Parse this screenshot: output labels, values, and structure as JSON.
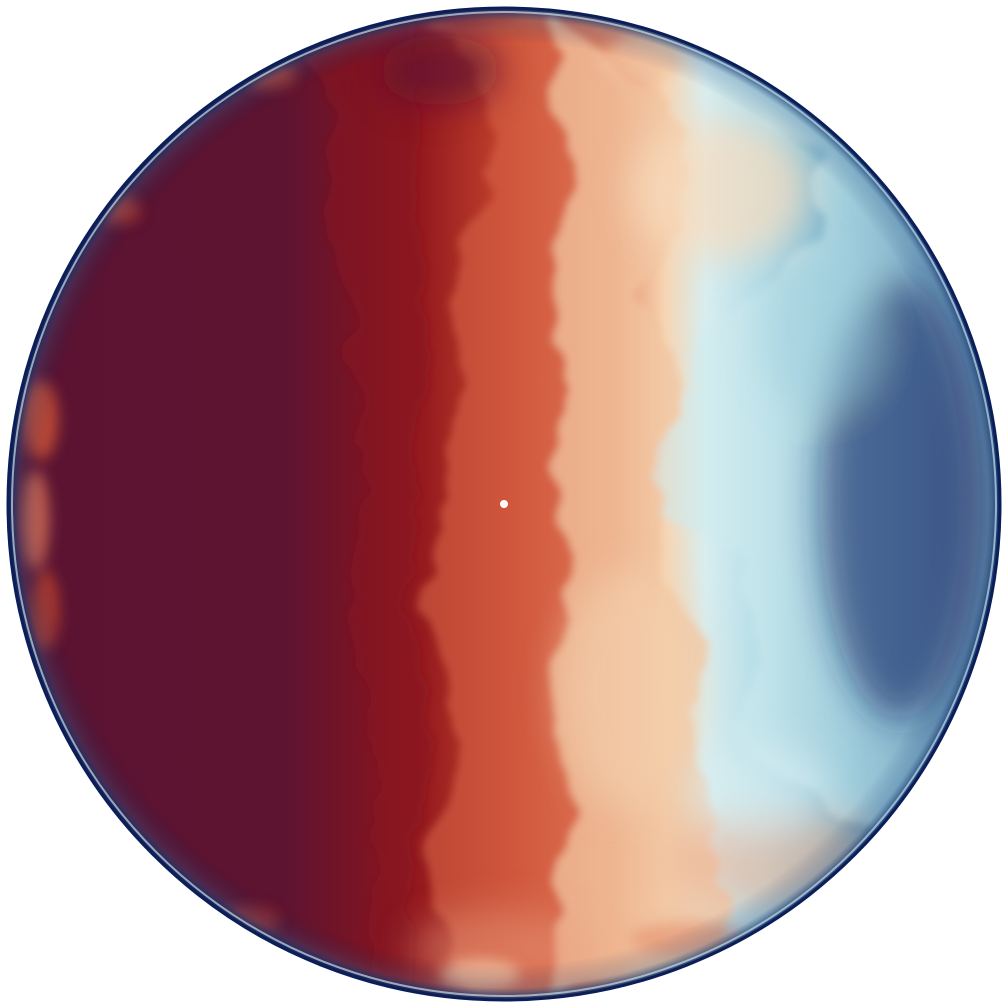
{
  "image": {
    "subject": "circular-flow-field",
    "background_color": "#ffffff",
    "colormap": {
      "name": "diverging-red-blue",
      "stops": [
        "#5a1232",
        "#8f1420",
        "#c9452e",
        "#e07555",
        "#f5cfae",
        "#fbead8",
        "#cfe9ee",
        "#8cc2d3",
        "#3d88ad",
        "#0a2463",
        "#06174d"
      ]
    },
    "regions": {
      "warm_dark": "#5b1332",
      "warm_mid": "#941a1f",
      "warm_light": "#dc6a4d",
      "cream": "#f8dcbd",
      "cool_light": "#cdebef",
      "cool_mid": "#5fa6c3",
      "cool_dark": "#0b2665",
      "rim": "#0a1f5a"
    },
    "center_marker": {
      "color": "#ffffff",
      "shape": "dot"
    }
  }
}
